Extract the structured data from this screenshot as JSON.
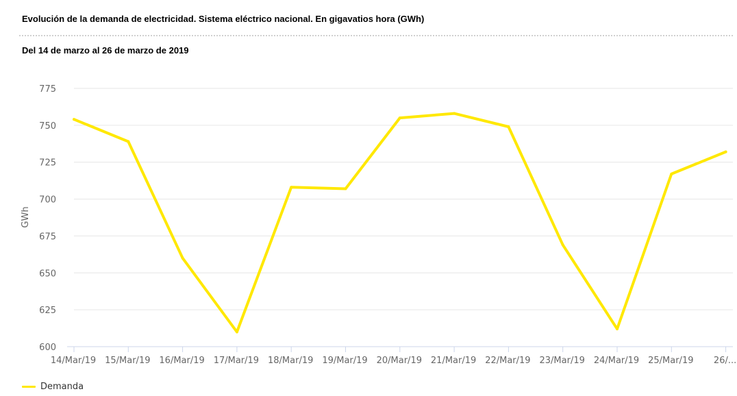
{
  "header": {
    "title": "Evolución de la demanda de electricidad. Sistema eléctrico nacional. En gigavatios hora (GWh)",
    "subtitle": "Del 14 de marzo al 26 de marzo de 2019"
  },
  "legend": {
    "position": "bottom-left",
    "items": [
      {
        "label": "Demanda",
        "color": "#FFE800"
      }
    ]
  },
  "chart_data": {
    "type": "line",
    "title": "Evolución de la demanda de electricidad. Sistema eléctrico nacional. En gigavatios hora (GWh)",
    "subtitle": "Del 14 de marzo al 26 de marzo de 2019",
    "xlabel": "",
    "ylabel": "GWh",
    "categories": [
      "14/Mar/19",
      "15/Mar/19",
      "16/Mar/19",
      "17/Mar/19",
      "18/Mar/19",
      "19/Mar/19",
      "20/Mar/19",
      "21/Mar/19",
      "22/Mar/19",
      "23/Mar/19",
      "24/Mar/19",
      "25/Mar/19",
      "26/..."
    ],
    "ylim": [
      600,
      775
    ],
    "yticks": [
      600,
      625,
      650,
      675,
      700,
      725,
      750,
      775
    ],
    "grid": true,
    "series": [
      {
        "name": "Demanda",
        "color": "#FFE800",
        "values": [
          754,
          739,
          660,
          610,
          708,
          707,
          755,
          758,
          749,
          669,
          612,
          717,
          732
        ]
      }
    ]
  }
}
